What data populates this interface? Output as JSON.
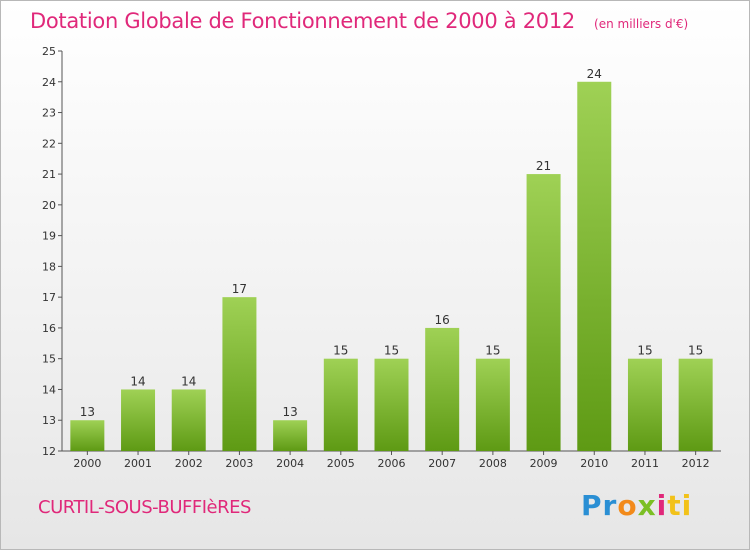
{
  "header": {
    "title": "Dotation Globale de Fonctionnement de 2000 à 2012",
    "subtitle": "(en milliers d'€)"
  },
  "footer": {
    "commune": "CURTIL-SOUS-BUFFIèRES",
    "logo_parts": [
      "Pr",
      "o",
      "x",
      "i",
      "ti"
    ]
  },
  "colors": {
    "title": "#e0287a",
    "bar_top": "#9fd155",
    "bar_bottom": "#5e9a14"
  },
  "chart_data": {
    "type": "bar",
    "categories": [
      "2000",
      "2001",
      "2002",
      "2003",
      "2004",
      "2005",
      "2006",
      "2007",
      "2008",
      "2009",
      "2010",
      "2011",
      "2012"
    ],
    "values": [
      13,
      14,
      14,
      17,
      13,
      15,
      15,
      16,
      15,
      21,
      24,
      15,
      15
    ],
    "title": "Dotation Globale de Fonctionnement de 2000 à 2012",
    "subtitle": "(en milliers d'€)",
    "xlabel": "",
    "ylabel": "",
    "ylim": [
      12,
      25
    ],
    "yticks": [
      12,
      13,
      14,
      15,
      16,
      17,
      18,
      19,
      20,
      21,
      22,
      23,
      24,
      25
    ],
    "grid": false,
    "legend": "none"
  }
}
